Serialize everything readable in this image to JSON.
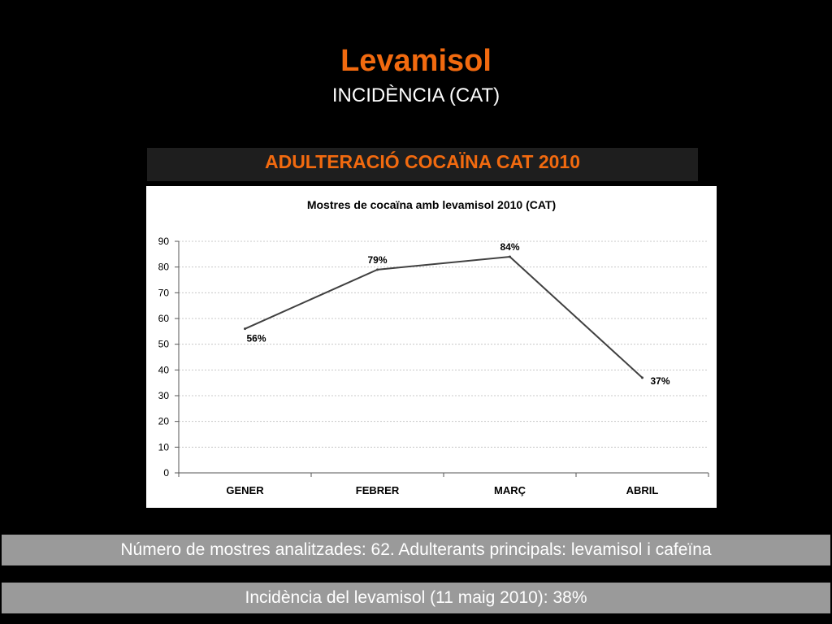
{
  "slide": {
    "title": "Levamisol",
    "subtitle": "INCIDÈNCIA (CAT)",
    "banner": "ADULTERACIÓ COCAÏNA CAT 2010",
    "note1": "Número de mostres analitzades: 62. Adulterants principals: levamisol i cafeïna",
    "note2": "Incidència del levamisol (11 maig 2010):  38%"
  },
  "colors": {
    "accent": "#f26a0f",
    "background": "#000000",
    "note_bar": "#9a9a9a",
    "line": "#404040"
  },
  "chart_data": {
    "type": "line",
    "title": "Mostres de cocaïna amb levamisol 2010 (CAT)",
    "xlabel": "",
    "ylabel": "",
    "categories": [
      "GENER",
      "FEBRER",
      "MARÇ",
      "ABRIL"
    ],
    "values": [
      56,
      79,
      84,
      37
    ],
    "data_labels": [
      "56%",
      "79%",
      "84%",
      "37%"
    ],
    "ylim": [
      0,
      90
    ],
    "yticks": [
      "0",
      "10",
      "20",
      "30",
      "40",
      "50",
      "60",
      "70",
      "80",
      "90"
    ],
    "grid": true,
    "legend": "none"
  }
}
